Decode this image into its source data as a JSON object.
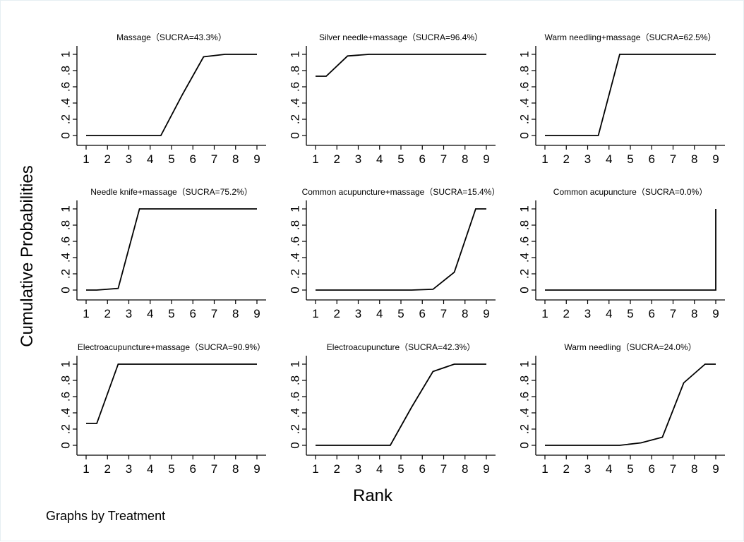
{
  "figure": {
    "ylabel": "Cumulative Probabilities",
    "xlabel": "Rank",
    "note": "Graphs by Treatment"
  },
  "chart_data": {
    "type": "line",
    "x_ticks": [
      1,
      2,
      3,
      4,
      5,
      6,
      7,
      8,
      9
    ],
    "y_ticks": [
      "0",
      ".2",
      ".4",
      ".6",
      ".8",
      "1"
    ],
    "y_tick_values": [
      0,
      0.2,
      0.4,
      0.6,
      0.8,
      1
    ],
    "xlim": [
      1,
      9
    ],
    "ylim": [
      0,
      1
    ],
    "grid": false,
    "line_color": "#000000",
    "panels": [
      {
        "title": "Massage（SUCRA=43.3%）",
        "x": [
          1,
          4.5,
          5.5,
          6.5,
          7.5,
          9
        ],
        "y": [
          0,
          0,
          0.5,
          0.97,
          1,
          1
        ]
      },
      {
        "title": "Silver needle+massage（SUCRA=96.4%）",
        "x": [
          1,
          1.5,
          2.5,
          3.5,
          9
        ],
        "y": [
          0.73,
          0.73,
          0.98,
          1,
          1
        ]
      },
      {
        "title": "Warm needling+massage（SUCRA=62.5%）",
        "x": [
          1,
          3.5,
          4.5,
          9
        ],
        "y": [
          0,
          0,
          1,
          1
        ]
      },
      {
        "title": "Needle knife+massage（SUCRA=75.2%）",
        "x": [
          1,
          1.5,
          2.5,
          3.5,
          9
        ],
        "y": [
          0,
          0,
          0.02,
          1,
          1
        ]
      },
      {
        "title": "Common acupuncture+massage（SUCRA=15.4%）",
        "x": [
          1,
          5.5,
          6.5,
          7.5,
          8.5,
          9
        ],
        "y": [
          0,
          0,
          0.01,
          0.22,
          1,
          1
        ]
      },
      {
        "title": "Common acupuncture（SUCRA=0.0%）",
        "x": [
          1,
          9,
          9
        ],
        "y": [
          0,
          0,
          1
        ]
      },
      {
        "title": "Electroacupuncture+massage（SUCRA=90.9%）",
        "x": [
          1,
          1.5,
          2.5,
          9
        ],
        "y": [
          0.27,
          0.27,
          1,
          1
        ]
      },
      {
        "title": "Electroacupuncture（SUCRA=42.3%）",
        "x": [
          1,
          4.5,
          5.5,
          6.5,
          7.5,
          9
        ],
        "y": [
          0,
          0,
          0.47,
          0.91,
          1,
          1
        ]
      },
      {
        "title": "Warm needling（SUCRA=24.0%）",
        "x": [
          1,
          4.5,
          5.5,
          6.5,
          7.5,
          8.5,
          9
        ],
        "y": [
          0,
          0,
          0.03,
          0.1,
          0.77,
          1,
          1
        ]
      }
    ]
  }
}
